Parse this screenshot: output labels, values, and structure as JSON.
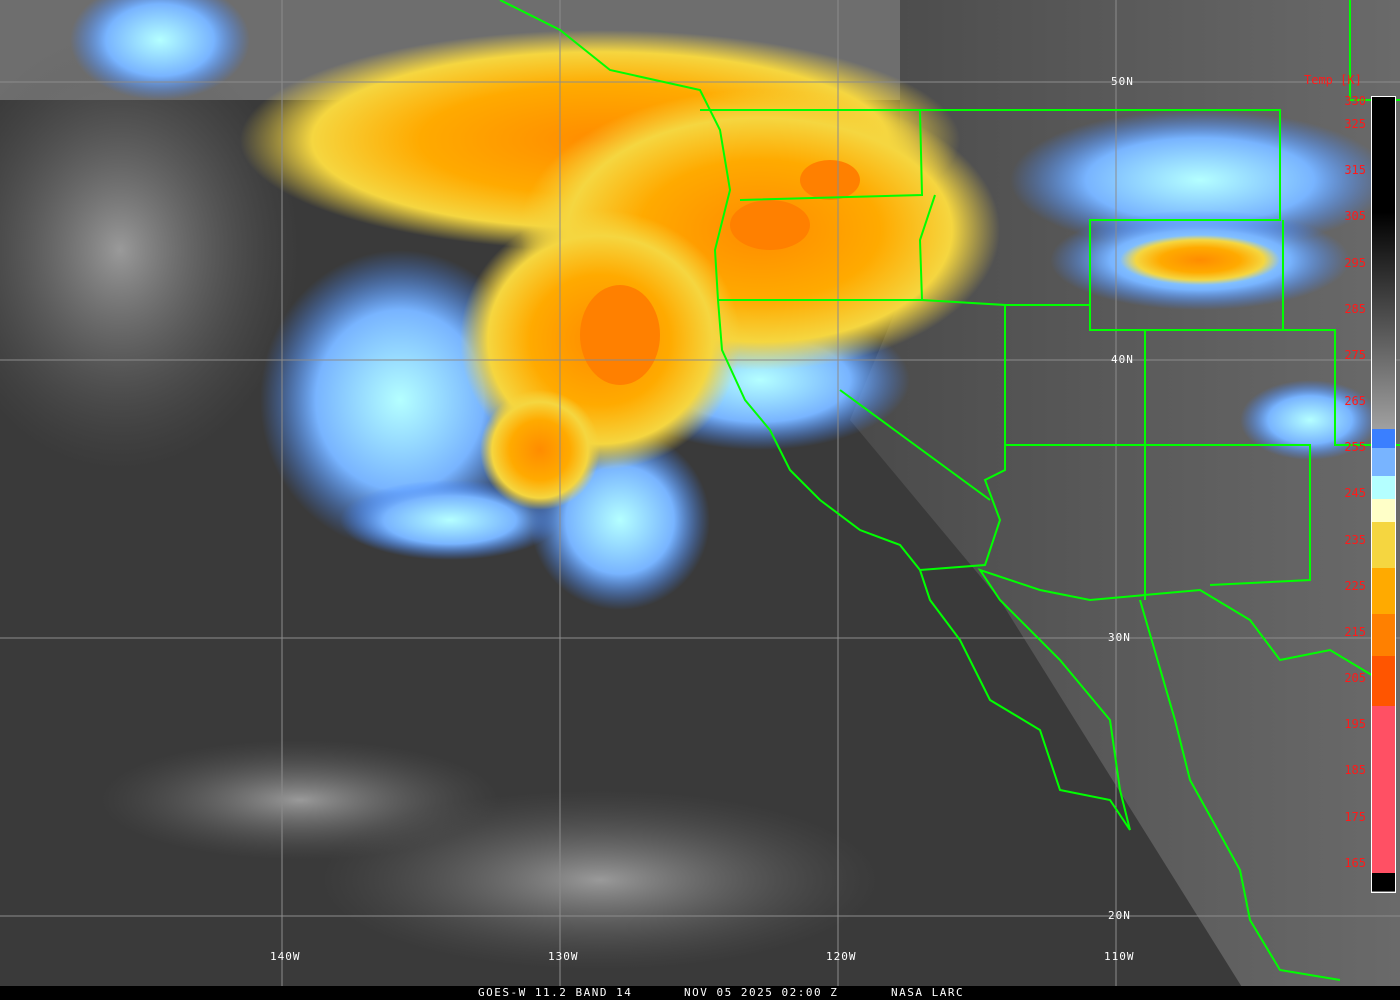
{
  "colorbar": {
    "title": "Temp [K]",
    "ticks": [
      "330",
      "325",
      "315",
      "305",
      "295",
      "285",
      "275",
      "265",
      "255",
      "245",
      "235",
      "225",
      "215",
      "205",
      "195",
      "185",
      "175",
      "165"
    ],
    "tick_values": [
      330,
      325,
      315,
      305,
      295,
      285,
      275,
      265,
      255,
      245,
      235,
      225,
      215,
      205,
      195,
      185,
      175,
      165
    ],
    "color_stops": [
      {
        "from": 330,
        "to": 305,
        "color": "#000000"
      },
      {
        "from": 305,
        "to": 258,
        "color": "gradient #000000-#a0a0a0"
      },
      {
        "from": 258,
        "to": 254,
        "color": "#3a7fff"
      },
      {
        "from": 254,
        "to": 248,
        "color": "#78b4ff"
      },
      {
        "from": 248,
        "to": 243,
        "color": "#b4ffff"
      },
      {
        "from": 243,
        "to": 238,
        "color": "#ffffc8"
      },
      {
        "from": 238,
        "to": 228,
        "color": "#f5d640"
      },
      {
        "from": 228,
        "to": 218,
        "color": "#ffaa00"
      },
      {
        "from": 218,
        "to": 209,
        "color": "#ff8000"
      },
      {
        "from": 209,
        "to": 198,
        "color": "#ff5500"
      },
      {
        "from": 198,
        "to": 162,
        "color": "#ff5064"
      },
      {
        "from": 162,
        "to": 158,
        "color": "#000000"
      }
    ]
  },
  "grid": {
    "latitudes": [
      "50N",
      "40N",
      "30N",
      "20N"
    ],
    "longitudes": [
      "140W",
      "130W",
      "120W",
      "110W"
    ],
    "line_color": "#8c8c8c",
    "border_color": "#00ff00"
  },
  "caption": {
    "satellite": "GOES-W 11.2 BAND 14",
    "datetime": "NOV 05 2025 02:00 Z",
    "source": "NASA LARC"
  }
}
